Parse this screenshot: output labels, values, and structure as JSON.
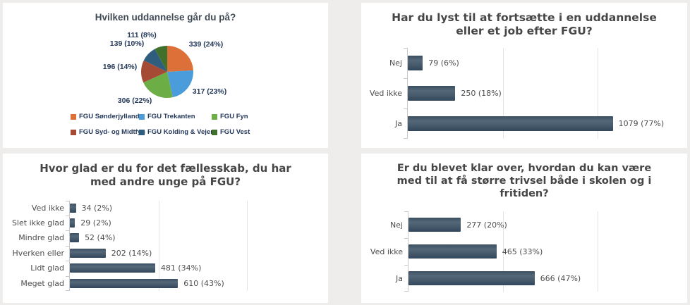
{
  "chart_data": [
    {
      "type": "pie",
      "title": "Hvilken uddannelse går du på?",
      "labels": [
        "FGU Sønderjylland",
        "FGU Trekanten",
        "FGU Fyn",
        "FGU Syd- og Midtfyn",
        "FGU Kolding & Vejen",
        "FGU Vest"
      ],
      "values": [
        339,
        317,
        306,
        196,
        139,
        111
      ],
      "percents": [
        "24%",
        "23%",
        "22%",
        "14%",
        "10%",
        "8%"
      ],
      "data_labels": [
        "339 (24%)",
        "317 (23%)",
        "306 (22%)",
        "196 (14%)",
        "139 (10%)",
        "111 (8%)"
      ],
      "colors": [
        "#dd7038",
        "#4a9dda",
        "#6dad45",
        "#a54a35",
        "#2e5d7d",
        "#41702c"
      ],
      "legend_position": "bottom",
      "start_angle_deg": 0,
      "direction": "clockwise"
    },
    {
      "type": "bar",
      "orientation": "horizontal",
      "title": "Har du lyst til at fortsætte i en uddannelse\neller et job efter FGU?",
      "categories": [
        "Nej",
        "Ved ikke",
        "Ja"
      ],
      "values": [
        79,
        250,
        1079
      ],
      "data_labels": [
        "79 (6%)",
        "250 (18%)",
        "1079 (77%)"
      ],
      "xlim": [
        0,
        1433
      ],
      "grid_x": [
        500,
        1000
      ],
      "bar_color": "#41566a",
      "grid": true,
      "legend": false
    },
    {
      "type": "bar",
      "orientation": "horizontal",
      "title": "Hvor glad er du for det fællesskab, du har\nmed andre unge på FGU?",
      "categories": [
        "Ved ikke",
        "Slet ikke glad",
        "Mindre glad",
        "Hverken eller",
        "Lidt glad",
        "Meget glad"
      ],
      "values": [
        34,
        29,
        52,
        202,
        481,
        610
      ],
      "data_labels": [
        "34 (2%)",
        "29 (2%)",
        "52 (4%)",
        "202 (14%)",
        "481 (34%)",
        "610 (43%)"
      ],
      "xlim": [
        0,
        1417
      ],
      "grid_x": [
        500,
        1000
      ],
      "bar_color": "#41566a",
      "grid": true,
      "legend": false
    },
    {
      "type": "bar",
      "orientation": "horizontal",
      "title": "Er du blevet klar over, hvordan du kan være\nmed til at få større trivsel både i skolen og i\nfritiden?",
      "categories": [
        "Nej",
        "Ved ikke",
        "Ja"
      ],
      "values": [
        277,
        465,
        666
      ],
      "data_labels": [
        "277 (20%)",
        "465 (33%)",
        "666 (47%)"
      ],
      "xlim": [
        0,
        1435
      ],
      "grid_x": [
        500,
        1000
      ],
      "bar_color": "#41566a",
      "grid": true,
      "legend": false
    }
  ],
  "page": {
    "background": "#efedeb",
    "panel_background": "#ffffff",
    "accent_navy": "#24395b",
    "text_gray": "#4d4d4d"
  }
}
